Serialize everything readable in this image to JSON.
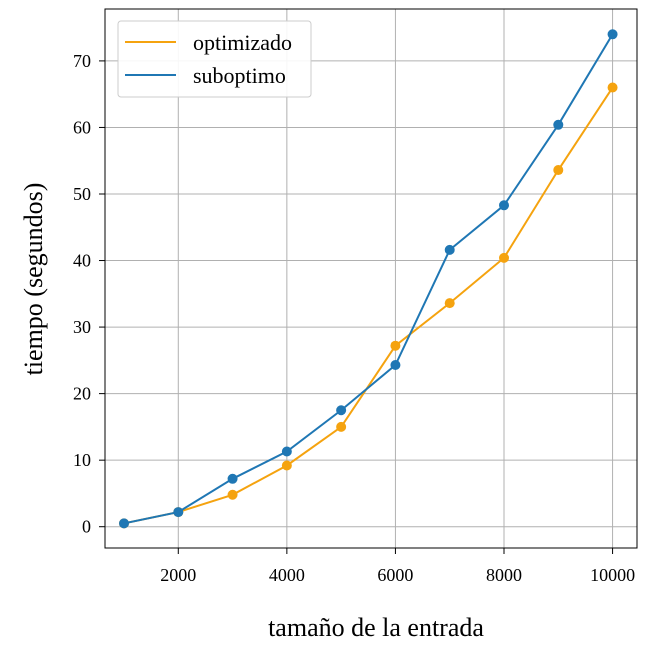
{
  "chart_data": {
    "type": "line",
    "title": "",
    "xlabel": "tamaño de la entrada",
    "ylabel": "tiempo (segundos)",
    "xlim": [
      650,
      10450
    ],
    "ylim": [
      -3.2,
      77.8
    ],
    "xticks": [
      2000,
      4000,
      6000,
      8000,
      10000
    ],
    "yticks": [
      0,
      10,
      20,
      30,
      40,
      50,
      60,
      70
    ],
    "grid": true,
    "legend_position": "top-left",
    "x": [
      1000,
      2000,
      3000,
      4000,
      5000,
      6000,
      7000,
      8000,
      9000,
      10000
    ],
    "series": [
      {
        "name": "optimizado",
        "color": "#f5a30f",
        "values": [
          0.5,
          2.2,
          4.8,
          9.2,
          15.0,
          27.2,
          33.6,
          40.4,
          53.6,
          66.0
        ]
      },
      {
        "name": "suboptimo",
        "color": "#1f77b4",
        "values": [
          0.5,
          2.2,
          7.2,
          11.3,
          17.5,
          24.3,
          41.6,
          48.3,
          60.4,
          74.0
        ]
      }
    ]
  }
}
